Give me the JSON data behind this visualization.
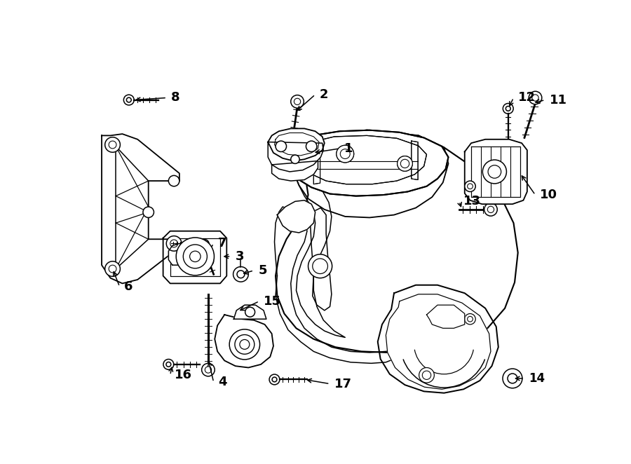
{
  "background_color": "#ffffff",
  "line_color": "#000000",
  "fig_width": 9.0,
  "fig_height": 6.62,
  "dpi": 100,
  "lw": 1.1,
  "label_fontsize": 13
}
